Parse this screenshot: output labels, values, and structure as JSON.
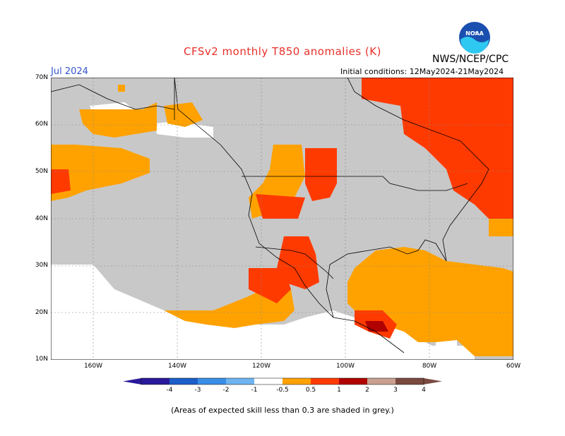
{
  "header": {
    "title": "CFSv2 monthly T850 anomalies (K)",
    "agency": "NWS/NCEP/CPC",
    "month": "Jul 2024",
    "initial_conditions": "Initial conditions: 12May2024-21May2024",
    "logo_text": "NOAA"
  },
  "map": {
    "lat_labels": [
      "70N",
      "60N",
      "50N",
      "40N",
      "30N",
      "20N",
      "10N"
    ],
    "lon_labels": [
      "160W",
      "140W",
      "120W",
      "100W",
      "80W",
      "60W"
    ],
    "extent": {
      "lon_min": -170,
      "lon_max": -60,
      "lat_min": 10,
      "lat_max": 70
    }
  },
  "colorbar": {
    "labels": [
      "-4",
      "-3",
      "-2",
      "-1",
      "-0.5",
      "0.5",
      "1",
      "2",
      "3",
      "4"
    ],
    "colors": [
      "#2a1a9a",
      "#1d5fc8",
      "#3a8ee6",
      "#6fb4f0",
      "#ffffff",
      "#ffa200",
      "#ff3a00",
      "#b00000",
      "#c9a090",
      "#7a4a40"
    ]
  },
  "colors": {
    "grey": "#c8c8c8",
    "orange": "#ffa200",
    "red": "#ff3a00",
    "darkred": "#b00000"
  },
  "footnote": "(Areas of expected skill less than 0.3 are shaded in grey.)"
}
